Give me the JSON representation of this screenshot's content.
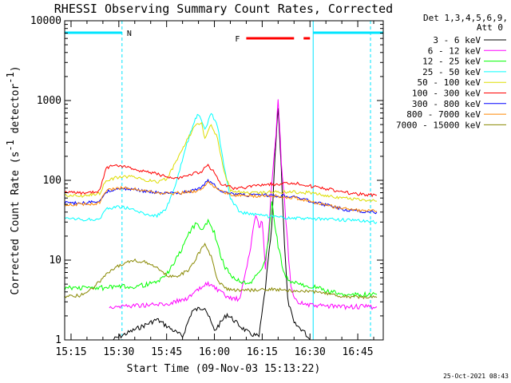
{
  "chart_data": {
    "type": "line",
    "title": "RHESSI Observing Summary Count Rates, Corrected",
    "xlabel": "Start Time (09-Nov-03 15:13:22)",
    "ylabel": "Corrected Count Rate (s",
    "ylabel_exp1": "-1",
    "ylabel_mid": " detector",
    "ylabel_exp2": "-1",
    "ylabel_end": ")",
    "y_scale": "log",
    "xlim": [
      "15:13",
      "16:53"
    ],
    "ylim": [
      1,
      10000
    ],
    "x_tick_labels": [
      "15:15",
      "15:30",
      "15:45",
      "16:00",
      "16:15",
      "16:30",
      "16:45"
    ],
    "y_tick_labels": [
      "1",
      "10",
      "100",
      "1000",
      "10000"
    ],
    "detectors_line1": "Det 1,3,4,5,6,9,",
    "detectors_line2": "Att 0",
    "timestamp": "25-Oct-2021 08:43",
    "night_label": "N",
    "flare_label": "F",
    "night_intervals": [
      [
        "15:13",
        "15:31"
      ],
      [
        "16:31",
        "16:53"
      ]
    ],
    "saa_boundaries": [
      "15:13",
      "15:31",
      "16:31",
      "16:49"
    ],
    "flare_intervals": [
      [
        "16:10",
        "16:25"
      ],
      [
        "16:28",
        "16:30"
      ]
    ],
    "series": [
      {
        "name": "3 - 6 keV",
        "color": "#000000",
        "points": [
          [
            "15:28",
            1
          ],
          [
            "15:36",
            1.4
          ],
          [
            "15:42",
            1.8
          ],
          [
            "15:50",
            1.1
          ],
          [
            "15:53",
            2.3
          ],
          [
            "15:57",
            2.6
          ],
          [
            "16:00",
            1.3
          ],
          [
            "16:04",
            2.1
          ],
          [
            "16:08",
            1.5
          ],
          [
            "16:11",
            1.2
          ],
          [
            "16:14",
            1.1
          ],
          [
            "16:16",
            4.5
          ],
          [
            "16:18",
            26
          ],
          [
            "16:19",
            190
          ],
          [
            "16:20",
            830
          ],
          [
            "16:21",
            140
          ],
          [
            "16:22",
            16
          ],
          [
            "16:23",
            3.2
          ],
          [
            "16:25",
            1.6
          ],
          [
            "16:28",
            1.3
          ],
          [
            "16:30",
            1
          ]
        ]
      },
      {
        "name": "6 - 12 keV",
        "color": "#ff00ff",
        "points": [
          [
            "15:27",
            2.6
          ],
          [
            "15:35",
            2.7
          ],
          [
            "15:45",
            2.8
          ],
          [
            "15:52",
            3.4
          ],
          [
            "15:55",
            4.2
          ],
          [
            "15:58",
            5.2
          ],
          [
            "16:01",
            4.2
          ],
          [
            "16:04",
            3.4
          ],
          [
            "16:08",
            3.2
          ],
          [
            "16:11",
            12
          ],
          [
            "16:13",
            38
          ],
          [
            "16:14",
            26
          ],
          [
            "16:15",
            31
          ],
          [
            "16:16",
            8
          ],
          [
            "16:17",
            22
          ],
          [
            "16:18",
            88
          ],
          [
            "16:19",
            260
          ],
          [
            "16:20",
            1000
          ],
          [
            "16:21",
            180
          ],
          [
            "16:22",
            55
          ],
          [
            "16:23",
            16
          ],
          [
            "16:24",
            4.5
          ],
          [
            "16:26",
            3
          ],
          [
            "16:30",
            2.7
          ],
          [
            "16:40",
            2.6
          ],
          [
            "16:51",
            2.6
          ]
        ]
      },
      {
        "name": "12 - 25 keV",
        "color": "#00ff00",
        "points": [
          [
            "15:13",
            4.5
          ],
          [
            "15:25",
            4.5
          ],
          [
            "15:35",
            4.7
          ],
          [
            "15:42",
            5.2
          ],
          [
            "15:46",
            7.5
          ],
          [
            "15:49",
            12
          ],
          [
            "15:52",
            22
          ],
          [
            "15:54",
            28
          ],
          [
            "15:56",
            25
          ],
          [
            "15:58",
            30
          ],
          [
            "16:00",
            22
          ],
          [
            "16:03",
            8.5
          ],
          [
            "16:06",
            6
          ],
          [
            "16:09",
            5.2
          ],
          [
            "16:12",
            5.5
          ],
          [
            "16:14",
            7
          ],
          [
            "16:16",
            10
          ],
          [
            "16:17",
            18
          ],
          [
            "16:18",
            55
          ],
          [
            "16:19",
            28
          ],
          [
            "16:20",
            15
          ],
          [
            "16:22",
            6.5
          ],
          [
            "16:24",
            5.2
          ],
          [
            "16:30",
            4.8
          ],
          [
            "16:36",
            4
          ],
          [
            "16:42",
            3.7
          ],
          [
            "16:51",
            3.7
          ]
        ]
      },
      {
        "name": "25 - 50 keV",
        "color": "#00ffff",
        "points": [
          [
            "15:13",
            33
          ],
          [
            "15:20",
            32
          ],
          [
            "15:24",
            33
          ],
          [
            "15:26",
            44
          ],
          [
            "15:30",
            47
          ],
          [
            "15:33",
            45
          ],
          [
            "15:38",
            38
          ],
          [
            "15:42",
            36
          ],
          [
            "15:45",
            45
          ],
          [
            "15:48",
            90
          ],
          [
            "15:51",
            260
          ],
          [
            "15:54",
            580
          ],
          [
            "15:55",
            680
          ],
          [
            "15:57",
            420
          ],
          [
            "15:59",
            700
          ],
          [
            "16:01",
            480
          ],
          [
            "16:03",
            150
          ],
          [
            "16:05",
            60
          ],
          [
            "16:08",
            40
          ],
          [
            "16:15",
            36
          ],
          [
            "16:20",
            34
          ],
          [
            "16:30",
            33
          ],
          [
            "16:40",
            32
          ],
          [
            "16:51",
            30
          ]
        ]
      },
      {
        "name": "50 - 100 keV",
        "color": "#dddd00",
        "points": [
          [
            "15:13",
            65
          ],
          [
            "15:20",
            64
          ],
          [
            "15:24",
            68
          ],
          [
            "15:26",
            100
          ],
          [
            "15:30",
            110
          ],
          [
            "15:34",
            110
          ],
          [
            "15:38",
            102
          ],
          [
            "15:42",
            96
          ],
          [
            "15:45",
            105
          ],
          [
            "15:48",
            170
          ],
          [
            "15:51",
            300
          ],
          [
            "15:54",
            480
          ],
          [
            "15:56",
            520
          ],
          [
            "15:57",
            330
          ],
          [
            "15:59",
            500
          ],
          [
            "16:01",
            340
          ],
          [
            "16:03",
            130
          ],
          [
            "16:05",
            75
          ],
          [
            "16:10",
            70
          ],
          [
            "16:15",
            70
          ],
          [
            "16:20",
            72
          ],
          [
            "16:30",
            70
          ],
          [
            "16:40",
            60
          ],
          [
            "16:51",
            55
          ]
        ]
      },
      {
        "name": "100 - 300 keV",
        "color": "#ff0000",
        "points": [
          [
            "15:13",
            70
          ],
          [
            "15:20",
            70
          ],
          [
            "15:24",
            74
          ],
          [
            "15:26",
            145
          ],
          [
            "15:30",
            155
          ],
          [
            "15:34",
            140
          ],
          [
            "15:38",
            130
          ],
          [
            "15:42",
            120
          ],
          [
            "15:45",
            110
          ],
          [
            "15:48",
            105
          ],
          [
            "15:52",
            115
          ],
          [
            "15:56",
            130
          ],
          [
            "15:58",
            155
          ],
          [
            "16:00",
            125
          ],
          [
            "16:02",
            90
          ],
          [
            "16:06",
            80
          ],
          [
            "16:10",
            82
          ],
          [
            "16:15",
            88
          ],
          [
            "16:20",
            90
          ],
          [
            "16:25",
            92
          ],
          [
            "16:32",
            82
          ],
          [
            "16:38",
            75
          ],
          [
            "16:44",
            68
          ],
          [
            "16:51",
            65
          ]
        ]
      },
      {
        "name": "300 - 800 keV",
        "color": "#0000ff",
        "points": [
          [
            "15:13",
            52
          ],
          [
            "15:20",
            52
          ],
          [
            "15:24",
            55
          ],
          [
            "15:26",
            72
          ],
          [
            "15:30",
            78
          ],
          [
            "15:34",
            78
          ],
          [
            "15:38",
            73
          ],
          [
            "15:42",
            70
          ],
          [
            "15:46",
            68
          ],
          [
            "15:50",
            70
          ],
          [
            "15:54",
            75
          ],
          [
            "15:56",
            82
          ],
          [
            "15:58",
            100
          ],
          [
            "16:00",
            88
          ],
          [
            "16:02",
            75
          ],
          [
            "16:06",
            67
          ],
          [
            "16:10",
            65
          ],
          [
            "16:15",
            65
          ],
          [
            "16:20",
            64
          ],
          [
            "16:25",
            63
          ],
          [
            "16:30",
            55
          ],
          [
            "16:36",
            48
          ],
          [
            "16:42",
            42
          ],
          [
            "16:51",
            40
          ]
        ]
      },
      {
        "name": "800 - 7000 keV",
        "color": "#ff8800",
        "points": [
          [
            "15:13",
            50
          ],
          [
            "15:20",
            50
          ],
          [
            "15:24",
            52
          ],
          [
            "15:26",
            75
          ],
          [
            "15:30",
            80
          ],
          [
            "15:34",
            80
          ],
          [
            "15:38",
            74
          ],
          [
            "15:42",
            70
          ],
          [
            "15:46",
            68
          ],
          [
            "15:50",
            70
          ],
          [
            "15:54",
            74
          ],
          [
            "15:56",
            80
          ],
          [
            "15:58",
            95
          ],
          [
            "16:00",
            84
          ],
          [
            "16:02",
            72
          ],
          [
            "16:06",
            66
          ],
          [
            "16:10",
            64
          ],
          [
            "16:15",
            64
          ],
          [
            "16:20",
            63
          ],
          [
            "16:25",
            61
          ],
          [
            "16:30",
            54
          ],
          [
            "16:36",
            48
          ],
          [
            "16:42",
            43
          ],
          [
            "16:51",
            41
          ]
        ]
      },
      {
        "name": "7000 - 15000 keV",
        "color": "#888800",
        "points": [
          [
            "15:13",
            3.5
          ],
          [
            "15:18",
            3.6
          ],
          [
            "15:22",
            4.5
          ],
          [
            "15:26",
            6.5
          ],
          [
            "15:30",
            8.5
          ],
          [
            "15:34",
            10
          ],
          [
            "15:38",
            9.5
          ],
          [
            "15:42",
            8
          ],
          [
            "15:45",
            6.5
          ],
          [
            "15:48",
            6.2
          ],
          [
            "15:52",
            7.5
          ],
          [
            "15:55",
            12
          ],
          [
            "15:57",
            16
          ],
          [
            "15:59",
            11
          ],
          [
            "16:01",
            5.5
          ],
          [
            "16:04",
            4.3
          ],
          [
            "16:08",
            4.2
          ],
          [
            "16:12",
            4.2
          ],
          [
            "16:18",
            4.3
          ],
          [
            "16:22",
            4.2
          ],
          [
            "16:28",
            4.1
          ],
          [
            "16:34",
            3.9
          ],
          [
            "16:40",
            3.5
          ],
          [
            "16:51",
            3.4
          ]
        ]
      }
    ]
  }
}
